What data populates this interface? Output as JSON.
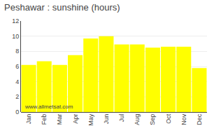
{
  "chart_data": {
    "type": "bar",
    "title": "Peshawar : sunshine (hours)",
    "categories": [
      "Jan",
      "Feb",
      "Mar",
      "Apr",
      "May",
      "Jun",
      "Jul",
      "Aug",
      "Sep",
      "Oct",
      "Nov",
      "Dec"
    ],
    "values": [
      6.2,
      6.7,
      6.2,
      7.5,
      9.7,
      10.0,
      8.9,
      8.9,
      8.5,
      8.6,
      8.6,
      5.8
    ],
    "color": "#FFFF00",
    "ylim": [
      0,
      12
    ],
    "yticks": [
      0,
      2,
      4,
      6,
      8,
      10,
      12
    ],
    "grid": true,
    "annotations": [
      "www.allmetsat.com"
    ]
  }
}
